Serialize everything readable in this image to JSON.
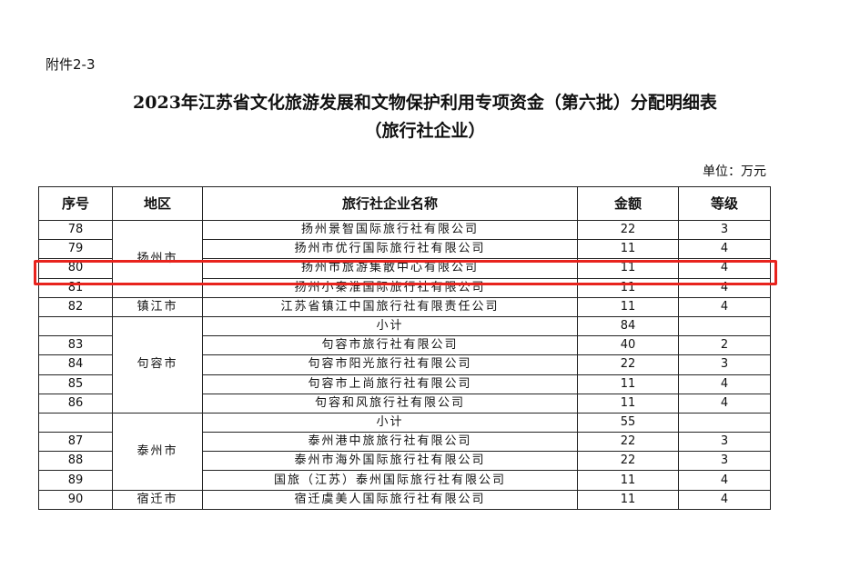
{
  "attachment": "附件2-3",
  "title": "2023年江苏省文化旅游发展和文物保护利用专项资金（第六批）分配明细表",
  "subtitle": "（旅行社企业）",
  "unit": "单位：万元",
  "highlight_color": "#e8231d",
  "table": {
    "headers": [
      "序号",
      "地区",
      "旅行社企业名称",
      "金额",
      "等级"
    ],
    "rows": [
      {
        "no": "78",
        "region": "扬州市",
        "name": "扬州景智国际旅行社有限公司",
        "amount": "22",
        "grade": "3"
      },
      {
        "no": "79",
        "name": "扬州市优行国际旅行社有限公司",
        "amount": "11",
        "grade": "4"
      },
      {
        "no": "80",
        "name": "扬州市旅游集散中心有限公司",
        "amount": "11",
        "grade": "4"
      },
      {
        "no": "81",
        "name": "扬州小秦淮国际旅行社有限公司",
        "amount": "11",
        "grade": "4"
      },
      {
        "no": "82",
        "region": "镇江市",
        "name": "江苏省镇江中国旅行社有限责任公司",
        "amount": "11",
        "grade": "4"
      },
      {
        "no": "",
        "region": "句容市",
        "name": "小计",
        "amount": "84",
        "grade": ""
      },
      {
        "no": "83",
        "name": "句容市旅行社有限公司",
        "amount": "40",
        "grade": "2"
      },
      {
        "no": "84",
        "name": "句容市阳光旅行社有限公司",
        "amount": "22",
        "grade": "3"
      },
      {
        "no": "85",
        "name": "句容市上尚旅行社有限公司",
        "amount": "11",
        "grade": "4"
      },
      {
        "no": "86",
        "name": "句容和风旅行社有限公司",
        "amount": "11",
        "grade": "4"
      },
      {
        "no": "",
        "region": "泰州市",
        "name": "小计",
        "amount": "55",
        "grade": ""
      },
      {
        "no": "87",
        "name": "泰州港中旅旅行社有限公司",
        "amount": "22",
        "grade": "3"
      },
      {
        "no": "88",
        "name": "泰州市海外国际旅行社有限公司",
        "amount": "22",
        "grade": "3"
      },
      {
        "no": "89",
        "name": "国旅（江苏）泰州国际旅行社有限公司",
        "amount": "11",
        "grade": "4"
      },
      {
        "no": "90",
        "region": "宿迁市",
        "name": "宿迁虞美人国际旅行社有限公司",
        "amount": "11",
        "grade": "4"
      }
    ]
  }
}
